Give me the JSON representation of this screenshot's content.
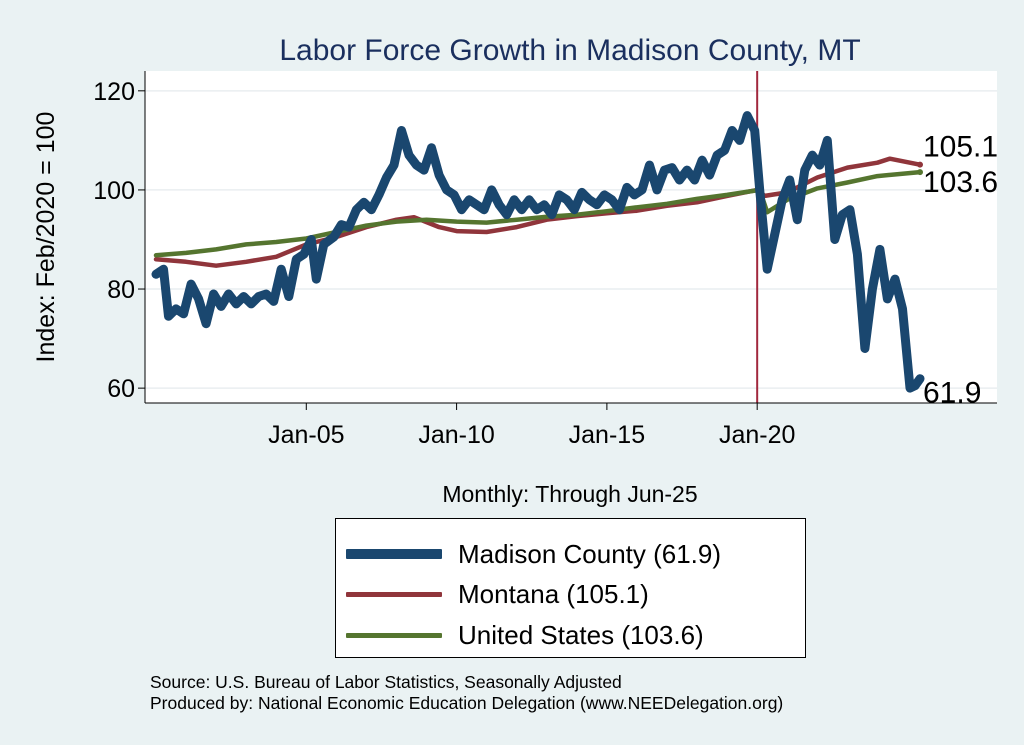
{
  "chart_data": {
    "type": "line",
    "title": "Labor Force Growth in Madison  County, MT",
    "xlabel": "Monthly: Through Jun-25",
    "ylabel": "Index: Feb/2020 = 100",
    "ylim": [
      57,
      124
    ],
    "xlim": [
      "2000-01",
      "2025-06"
    ],
    "xticks": [
      "Jan-05",
      "Jan-10",
      "Jan-15",
      "Jan-20"
    ],
    "yticks": [
      60,
      80,
      100,
      120
    ],
    "grid": true,
    "vertical_marker": "Jan-20",
    "legend_position": "bottom",
    "series": [
      {
        "name": "Madison  County (61.9)",
        "color": "#1a476f",
        "end_label": "61.9",
        "points": [
          [
            "2000-01",
            83
          ],
          [
            "2000-04",
            84
          ],
          [
            "2000-06",
            74.5
          ],
          [
            "2000-09",
            76
          ],
          [
            "2000-12",
            75
          ],
          [
            "2001-03",
            81
          ],
          [
            "2001-06",
            78
          ],
          [
            "2001-09",
            73
          ],
          [
            "2001-12",
            79
          ],
          [
            "2002-03",
            76.5
          ],
          [
            "2002-06",
            79
          ],
          [
            "2002-09",
            77
          ],
          [
            "2002-12",
            78.5
          ],
          [
            "2003-03",
            77
          ],
          [
            "2003-06",
            78.5
          ],
          [
            "2003-09",
            79
          ],
          [
            "2003-12",
            77.5
          ],
          [
            "2004-03",
            84
          ],
          [
            "2004-06",
            78.5
          ],
          [
            "2004-09",
            86
          ],
          [
            "2004-12",
            87
          ],
          [
            "2005-03",
            90
          ],
          [
            "2005-05",
            82
          ],
          [
            "2005-08",
            89
          ],
          [
            "2005-12",
            90.5
          ],
          [
            "2006-03",
            93
          ],
          [
            "2006-06",
            92.5
          ],
          [
            "2006-09",
            96
          ],
          [
            "2006-12",
            97.5
          ],
          [
            "2007-03",
            96
          ],
          [
            "2007-06",
            99
          ],
          [
            "2007-09",
            102.5
          ],
          [
            "2007-12",
            105
          ],
          [
            "2008-03",
            112
          ],
          [
            "2008-06",
            107
          ],
          [
            "2008-09",
            105
          ],
          [
            "2008-12",
            104
          ],
          [
            "2009-03",
            108.5
          ],
          [
            "2009-06",
            103
          ],
          [
            "2009-09",
            100
          ],
          [
            "2009-12",
            99
          ],
          [
            "2010-03",
            96
          ],
          [
            "2010-06",
            98
          ],
          [
            "2010-09",
            97
          ],
          [
            "2010-12",
            96
          ],
          [
            "2011-03",
            100
          ],
          [
            "2011-06",
            97
          ],
          [
            "2011-09",
            95
          ],
          [
            "2011-12",
            98
          ],
          [
            "2012-03",
            96
          ],
          [
            "2012-06",
            98
          ],
          [
            "2012-09",
            96
          ],
          [
            "2012-12",
            97
          ],
          [
            "2013-03",
            95
          ],
          [
            "2013-06",
            99
          ],
          [
            "2013-09",
            98
          ],
          [
            "2013-12",
            96
          ],
          [
            "2014-03",
            99.5
          ],
          [
            "2014-06",
            98
          ],
          [
            "2014-09",
            97
          ],
          [
            "2014-12",
            99
          ],
          [
            "2015-03",
            98
          ],
          [
            "2015-06",
            96
          ],
          [
            "2015-09",
            100.5
          ],
          [
            "2015-12",
            99
          ],
          [
            "2016-03",
            100
          ],
          [
            "2016-06",
            105
          ],
          [
            "2016-09",
            100
          ],
          [
            "2016-12",
            104
          ],
          [
            "2017-03",
            104.5
          ],
          [
            "2017-06",
            102
          ],
          [
            "2017-09",
            104
          ],
          [
            "2017-12",
            102
          ],
          [
            "2018-03",
            106
          ],
          [
            "2018-06",
            103
          ],
          [
            "2018-09",
            107
          ],
          [
            "2018-12",
            108
          ],
          [
            "2019-03",
            112
          ],
          [
            "2019-06",
            110
          ],
          [
            "2019-09",
            115
          ],
          [
            "2019-12",
            112
          ],
          [
            "2020-02",
            100
          ],
          [
            "2020-05",
            84
          ],
          [
            "2020-08",
            91
          ],
          [
            "2020-11",
            98
          ],
          [
            "2021-02",
            102
          ],
          [
            "2021-05",
            94
          ],
          [
            "2021-08",
            104
          ],
          [
            "2021-11",
            107
          ],
          [
            "2022-02",
            105
          ],
          [
            "2022-05",
            110
          ],
          [
            "2022-08",
            90
          ],
          [
            "2022-11",
            95
          ],
          [
            "2023-02",
            96
          ],
          [
            "2023-05",
            87
          ],
          [
            "2023-08",
            68
          ],
          [
            "2023-11",
            80
          ],
          [
            "2024-02",
            88
          ],
          [
            "2024-05",
            78
          ],
          [
            "2024-08",
            82
          ],
          [
            "2024-11",
            76
          ],
          [
            "2025-02",
            60
          ],
          [
            "2025-04",
            60.5
          ],
          [
            "2025-06",
            61.9
          ]
        ]
      },
      {
        "name": "Montana (105.1)",
        "color": "#90353b",
        "end_label": "105.1",
        "points": [
          [
            "2000-01",
            86
          ],
          [
            "2001-01",
            85.5
          ],
          [
            "2002-01",
            84.7
          ],
          [
            "2003-01",
            85.5
          ],
          [
            "2004-01",
            86.5
          ],
          [
            "2005-01",
            89
          ],
          [
            "2006-01",
            90.5
          ],
          [
            "2007-01",
            92.5
          ],
          [
            "2008-01",
            94
          ],
          [
            "2008-08",
            94.5
          ],
          [
            "2009-06",
            92.5
          ],
          [
            "2010-01",
            91.7
          ],
          [
            "2011-01",
            91.5
          ],
          [
            "2012-01",
            92.5
          ],
          [
            "2013-01",
            94
          ],
          [
            "2014-01",
            94.7
          ],
          [
            "2015-01",
            95.3
          ],
          [
            "2016-01",
            95.8
          ],
          [
            "2017-01",
            96.8
          ],
          [
            "2018-01",
            97.5
          ],
          [
            "2019-01",
            98.8
          ],
          [
            "2020-01",
            100
          ],
          [
            "2020-04",
            98.8
          ],
          [
            "2021-01",
            99.5
          ],
          [
            "2022-01",
            102.5
          ],
          [
            "2023-01",
            104.5
          ],
          [
            "2024-01",
            105.5
          ],
          [
            "2024-06",
            106.3
          ],
          [
            "2025-06",
            105.1
          ]
        ]
      },
      {
        "name": "United States (103.6)",
        "color": "#55752f",
        "end_label": "103.6",
        "points": [
          [
            "2000-01",
            86.8
          ],
          [
            "2001-01",
            87.3
          ],
          [
            "2002-01",
            88
          ],
          [
            "2003-01",
            89
          ],
          [
            "2004-01",
            89.5
          ],
          [
            "2005-01",
            90.2
          ],
          [
            "2006-01",
            91.5
          ],
          [
            "2007-01",
            92.8
          ],
          [
            "2008-01",
            93.6
          ],
          [
            "2009-01",
            94
          ],
          [
            "2010-01",
            93.6
          ],
          [
            "2011-01",
            93.4
          ],
          [
            "2012-01",
            94
          ],
          [
            "2013-01",
            94.6
          ],
          [
            "2014-01",
            95
          ],
          [
            "2015-01",
            95.7
          ],
          [
            "2016-01",
            96.5
          ],
          [
            "2017-01",
            97.2
          ],
          [
            "2018-01",
            98.2
          ],
          [
            "2019-01",
            99
          ],
          [
            "2020-02",
            100
          ],
          [
            "2020-05",
            95.5
          ],
          [
            "2021-01",
            98
          ],
          [
            "2022-01",
            100.3
          ],
          [
            "2023-01",
            101.5
          ],
          [
            "2024-01",
            102.8
          ],
          [
            "2025-06",
            103.6
          ]
        ]
      }
    ]
  },
  "source_line": "Source: U.S. Bureau of Labor Statistics, Seasonally Adjusted",
  "producer_line": "Produced by: National Economic Education Delegation (www.NEEDelegation.org)"
}
